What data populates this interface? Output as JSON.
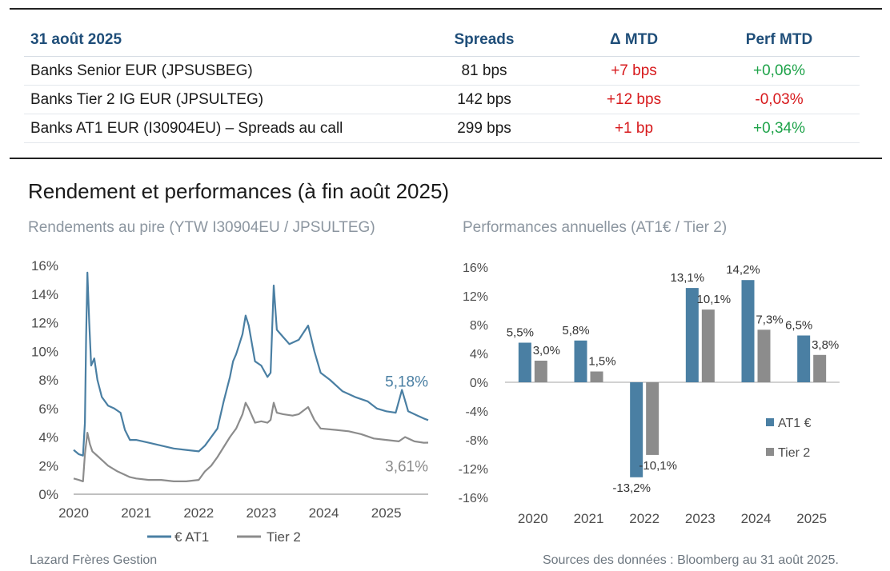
{
  "table": {
    "date": "31 août 2025",
    "headers": [
      "Spreads",
      "Δ MTD",
      "Perf MTD"
    ],
    "rows": [
      {
        "name": "Banks Senior EUR (JPSUSBEG)",
        "spread": "81 bps",
        "delta": "+7 bps",
        "perf": "+0,06%"
      },
      {
        "name": "Banks Tier 2 IG EUR (JPSULTEG)",
        "spread": "142 bps",
        "delta": "+12 bps",
        "perf": "-0,03%"
      },
      {
        "name": "Banks AT1 EUR (I30904EU) – Spreads au call",
        "spread": "299 bps",
        "delta": "+1 bp",
        "perf": "+0,34%"
      }
    ]
  },
  "section_title": "Rendement et performances (à fin août 2025)",
  "colors": {
    "at1": "#4a7fa3",
    "tier2": "#8c8c8c",
    "header_blue": "#1f4e79",
    "positive": "#1fa34a",
    "negative": "#d7191c"
  },
  "chart_data": [
    {
      "type": "line",
      "title": "Rendements au pire (YTW I30904EU / JPSULTEG)",
      "x_ticks": [
        "2020",
        "2021",
        "2022",
        "2023",
        "2024",
        "2025"
      ],
      "y_ticks": [
        "0%",
        "2%",
        "4%",
        "6%",
        "8%",
        "10%",
        "12%",
        "14%",
        "16%"
      ],
      "xlim": [
        2020.0,
        2025.67
      ],
      "ylim": [
        0,
        16
      ],
      "grid": false,
      "legend": "bottom",
      "end_labels": [
        "5,18%",
        "3,61%"
      ],
      "series": [
        {
          "name": "€ AT1",
          "points": [
            [
              2020.0,
              3.1
            ],
            [
              2020.08,
              2.8
            ],
            [
              2020.15,
              2.7
            ],
            [
              2020.18,
              5.0
            ],
            [
              2020.2,
              11.0
            ],
            [
              2020.22,
              15.5
            ],
            [
              2020.25,
              12.0
            ],
            [
              2020.28,
              9.0
            ],
            [
              2020.33,
              9.5
            ],
            [
              2020.38,
              8.0
            ],
            [
              2020.45,
              6.8
            ],
            [
              2020.55,
              6.2
            ],
            [
              2020.65,
              6.0
            ],
            [
              2020.75,
              5.7
            ],
            [
              2020.82,
              4.5
            ],
            [
              2020.9,
              3.8
            ],
            [
              2021.0,
              3.8
            ],
            [
              2021.2,
              3.6
            ],
            [
              2021.4,
              3.4
            ],
            [
              2021.6,
              3.2
            ],
            [
              2021.8,
              3.1
            ],
            [
              2022.0,
              3.0
            ],
            [
              2022.1,
              3.4
            ],
            [
              2022.2,
              4.0
            ],
            [
              2022.3,
              4.6
            ],
            [
              2022.4,
              6.5
            ],
            [
              2022.5,
              8.2
            ],
            [
              2022.55,
              9.3
            ],
            [
              2022.6,
              9.8
            ],
            [
              2022.7,
              11.2
            ],
            [
              2022.75,
              12.5
            ],
            [
              2022.8,
              11.8
            ],
            [
              2022.9,
              9.3
            ],
            [
              2023.0,
              9.0
            ],
            [
              2023.1,
              8.2
            ],
            [
              2023.15,
              8.5
            ],
            [
              2023.2,
              14.6
            ],
            [
              2023.25,
              11.5
            ],
            [
              2023.35,
              11.0
            ],
            [
              2023.45,
              10.5
            ],
            [
              2023.6,
              10.8
            ],
            [
              2023.75,
              11.8
            ],
            [
              2023.85,
              10.0
            ],
            [
              2023.95,
              8.5
            ],
            [
              2024.1,
              8.0
            ],
            [
              2024.3,
              7.2
            ],
            [
              2024.5,
              6.8
            ],
            [
              2024.7,
              6.5
            ],
            [
              2024.85,
              6.0
            ],
            [
              2025.0,
              5.8
            ],
            [
              2025.15,
              5.7
            ],
            [
              2025.25,
              7.3
            ],
            [
              2025.35,
              5.8
            ],
            [
              2025.5,
              5.5
            ],
            [
              2025.6,
              5.3
            ],
            [
              2025.67,
              5.18
            ]
          ]
        },
        {
          "name": "Tier 2",
          "points": [
            [
              2020.0,
              1.1
            ],
            [
              2020.08,
              1.0
            ],
            [
              2020.15,
              0.9
            ],
            [
              2020.18,
              2.8
            ],
            [
              2020.22,
              4.3
            ],
            [
              2020.26,
              3.5
            ],
            [
              2020.3,
              3.0
            ],
            [
              2020.4,
              2.6
            ],
            [
              2020.55,
              2.0
            ],
            [
              2020.7,
              1.6
            ],
            [
              2020.9,
              1.2
            ],
            [
              2021.0,
              1.1
            ],
            [
              2021.2,
              1.0
            ],
            [
              2021.4,
              1.0
            ],
            [
              2021.6,
              0.9
            ],
            [
              2021.8,
              0.9
            ],
            [
              2022.0,
              1.0
            ],
            [
              2022.1,
              1.6
            ],
            [
              2022.2,
              2.0
            ],
            [
              2022.3,
              2.6
            ],
            [
              2022.4,
              3.3
            ],
            [
              2022.5,
              4.0
            ],
            [
              2022.55,
              4.3
            ],
            [
              2022.6,
              4.6
            ],
            [
              2022.7,
              5.6
            ],
            [
              2022.75,
              6.4
            ],
            [
              2022.8,
              6.0
            ],
            [
              2022.9,
              5.0
            ],
            [
              2023.0,
              5.1
            ],
            [
              2023.1,
              5.0
            ],
            [
              2023.15,
              5.2
            ],
            [
              2023.2,
              6.4
            ],
            [
              2023.25,
              5.7
            ],
            [
              2023.35,
              5.6
            ],
            [
              2023.5,
              5.5
            ],
            [
              2023.6,
              5.6
            ],
            [
              2023.75,
              6.1
            ],
            [
              2023.85,
              5.2
            ],
            [
              2023.95,
              4.6
            ],
            [
              2024.2,
              4.5
            ],
            [
              2024.4,
              4.4
            ],
            [
              2024.6,
              4.2
            ],
            [
              2024.8,
              3.9
            ],
            [
              2025.0,
              3.8
            ],
            [
              2025.2,
              3.7
            ],
            [
              2025.3,
              4.0
            ],
            [
              2025.45,
              3.7
            ],
            [
              2025.6,
              3.6
            ],
            [
              2025.67,
              3.61
            ]
          ]
        }
      ]
    },
    {
      "type": "bar",
      "title": "Performances annuelles (AT1€ / Tier 2)",
      "categories": [
        "2020",
        "2021",
        "2022",
        "2023",
        "2024",
        "2025"
      ],
      "y_ticks": [
        "16%",
        "12%",
        "8%",
        "4%",
        "0%",
        "-4%",
        "-8%",
        "-12%",
        "-16%"
      ],
      "ylim": [
        -16,
        16
      ],
      "grid": false,
      "legend": "right",
      "series": [
        {
          "name": "AT1 €",
          "values": [
            5.5,
            5.8,
            -13.2,
            13.1,
            14.2,
            6.5
          ],
          "labels": [
            "5,5%",
            "5,8%",
            "-13,2%",
            "13,1%",
            "14,2%",
            "6,5%"
          ]
        },
        {
          "name": "Tier 2",
          "values": [
            3.0,
            1.5,
            -10.1,
            10.1,
            7.3,
            3.8
          ],
          "labels": [
            "3,0%",
            "1,5%",
            "-10,1%",
            "10,1%",
            "7,3%",
            "3,8%"
          ]
        }
      ]
    }
  ],
  "footer": {
    "left": "Lazard Frères Gestion",
    "right": "Sources des données : Bloomberg au 31 août 2025."
  }
}
